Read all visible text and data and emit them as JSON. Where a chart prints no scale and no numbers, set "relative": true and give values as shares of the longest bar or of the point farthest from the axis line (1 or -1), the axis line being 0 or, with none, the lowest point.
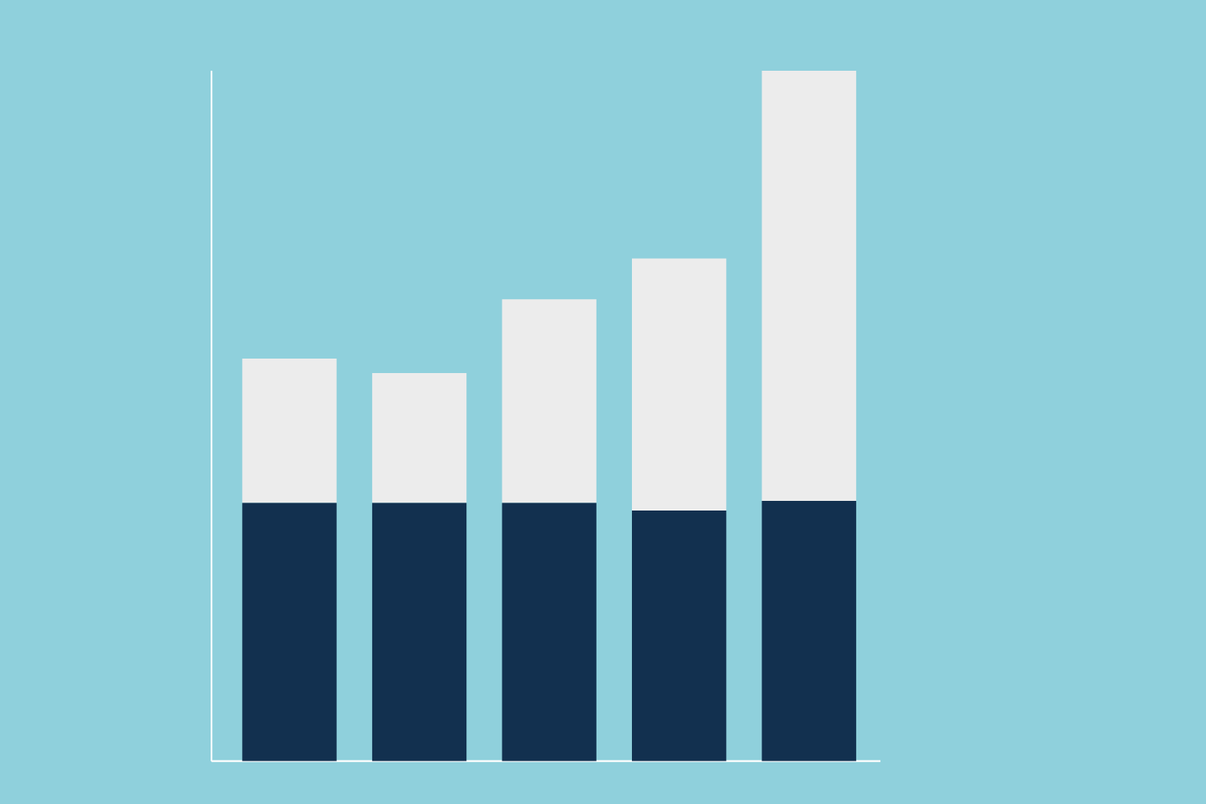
{
  "chart_data": {
    "type": "bar",
    "stacked": true,
    "relative": true,
    "categories": [
      null,
      null,
      null,
      null,
      null
    ],
    "series": [
      {
        "color": "#12304f",
        "values": [
          0.374,
          0.374,
          0.374,
          0.363,
          0.377
        ]
      },
      {
        "color": "#ececec",
        "values": [
          0.209,
          0.188,
          0.295,
          0.365,
          0.623
        ]
      }
    ]
  }
}
